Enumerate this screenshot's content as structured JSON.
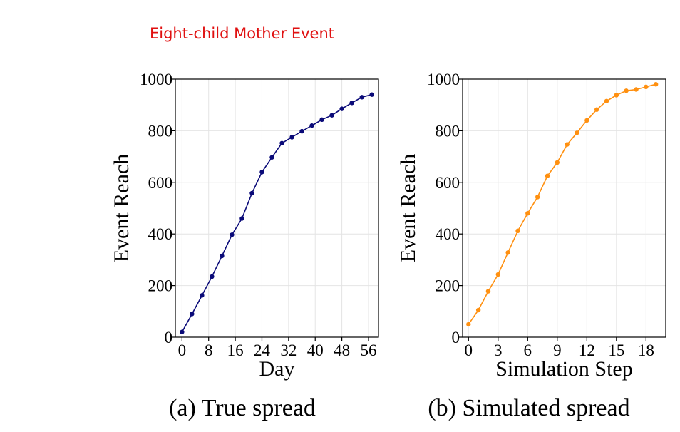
{
  "figure": {
    "title": "Eight-child Mother Event",
    "title_color": "#e01010"
  },
  "chart_data": [
    {
      "type": "line",
      "caption": "(a) True spread",
      "xlabel": "Day",
      "ylabel": "Event Reach",
      "xlim": [
        -2,
        59
      ],
      "ylim": [
        0,
        1000
      ],
      "xticks": [
        0,
        8,
        16,
        24,
        32,
        40,
        48,
        56
      ],
      "yticks": [
        0,
        200,
        400,
        600,
        800,
        1000
      ],
      "grid": true,
      "color": "#0a0a78",
      "x": [
        0,
        3,
        6,
        9,
        12,
        15,
        18,
        21,
        24,
        27,
        30,
        33,
        36,
        39,
        42,
        45,
        48,
        51,
        54,
        57
      ],
      "y": [
        20,
        90,
        162,
        235,
        315,
        397,
        460,
        558,
        640,
        697,
        752,
        775,
        798,
        820,
        843,
        860,
        885,
        908,
        930,
        940
      ]
    },
    {
      "type": "line",
      "caption": "(b) Simulated spread",
      "xlabel": "Simulation Step",
      "ylabel": "Event Reach",
      "xlim": [
        -0.6,
        20.0
      ],
      "ylim": [
        0,
        1000
      ],
      "xticks": [
        0,
        3,
        6,
        9,
        12,
        15,
        18
      ],
      "yticks": [
        0,
        200,
        400,
        600,
        800,
        1000
      ],
      "grid": true,
      "color": "#ff9010",
      "x": [
        0,
        1,
        2,
        3,
        4,
        5,
        6,
        7,
        8,
        9,
        10,
        11,
        12,
        13,
        14,
        15,
        16,
        17,
        18,
        19
      ],
      "y": [
        50,
        105,
        178,
        243,
        328,
        412,
        480,
        543,
        625,
        677,
        747,
        792,
        840,
        882,
        915,
        938,
        955,
        960,
        970,
        980
      ]
    }
  ]
}
